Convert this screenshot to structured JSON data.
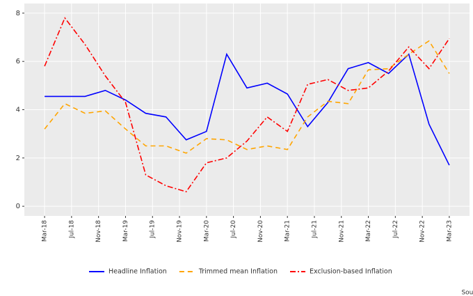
{
  "chart_data": {
    "type": "line",
    "x": [
      "2018-03",
      "2018-06",
      "2018-09",
      "2018-12",
      "2019-03",
      "2019-06",
      "2019-09",
      "2019-12",
      "2020-03",
      "2020-06",
      "2020-09",
      "2020-12",
      "2021-03",
      "2021-06",
      "2021-09",
      "2021-12",
      "2022-03",
      "2022-06",
      "2022-09",
      "2022-12",
      "2023-03"
    ],
    "series": [
      {
        "name": "Headline Inflation",
        "color": "#0000ff",
        "dash": "solid",
        "values": [
          4.55,
          4.55,
          4.55,
          4.8,
          4.4,
          3.85,
          3.7,
          2.75,
          3.1,
          6.3,
          4.9,
          5.1,
          4.65,
          3.3,
          4.3,
          5.7,
          5.95,
          5.5,
          6.3,
          3.4,
          1.7
        ]
      },
      {
        "name": "Trimmed mean Inflation",
        "color": "#ffa500",
        "dash": "dashed",
        "values": [
          3.2,
          4.25,
          3.85,
          3.95,
          3.2,
          2.5,
          2.5,
          2.2,
          2.8,
          2.75,
          2.35,
          2.5,
          2.35,
          3.7,
          4.35,
          4.25,
          5.65,
          5.7,
          6.3,
          6.85,
          5.5
        ]
      },
      {
        "name": "Exclusion-based Inflation",
        "color": "#ff0000",
        "dash": "dotdash",
        "values": [
          5.8,
          7.8,
          6.7,
          5.4,
          4.3,
          1.3,
          0.85,
          0.6,
          1.8,
          2.0,
          2.7,
          3.7,
          3.1,
          5.05,
          5.25,
          4.8,
          4.9,
          5.6,
          6.6,
          5.7,
          6.95
        ]
      }
    ],
    "xlim": [
      "2017-12",
      "2023-06"
    ],
    "xticks": [
      {
        "value": "2018-03",
        "label": "Mar-18"
      },
      {
        "value": "2018-07",
        "label": "Jul-18"
      },
      {
        "value": "2018-11",
        "label": "Nov-18"
      },
      {
        "value": "2019-03",
        "label": "Mar-19"
      },
      {
        "value": "2019-07",
        "label": "Jul-19"
      },
      {
        "value": "2019-11",
        "label": "Nov-19"
      },
      {
        "value": "2020-03",
        "label": "Mar-20"
      },
      {
        "value": "2020-07",
        "label": "Jul-20"
      },
      {
        "value": "2020-11",
        "label": "Nov-20"
      },
      {
        "value": "2021-03",
        "label": "Mar-21"
      },
      {
        "value": "2021-07",
        "label": "Jul-21"
      },
      {
        "value": "2021-11",
        "label": "Nov-21"
      },
      {
        "value": "2022-03",
        "label": "Mar-22"
      },
      {
        "value": "2022-07",
        "label": "Jul-22"
      },
      {
        "value": "2022-11",
        "label": "Nov-22"
      },
      {
        "value": "2023-03",
        "label": "Mar-23"
      }
    ],
    "ylim": [
      -0.4,
      8.4
    ],
    "yticks": [
      0,
      2,
      4,
      6,
      8
    ],
    "grid": true,
    "legend": "bottom",
    "source": "Source:BPNC"
  }
}
